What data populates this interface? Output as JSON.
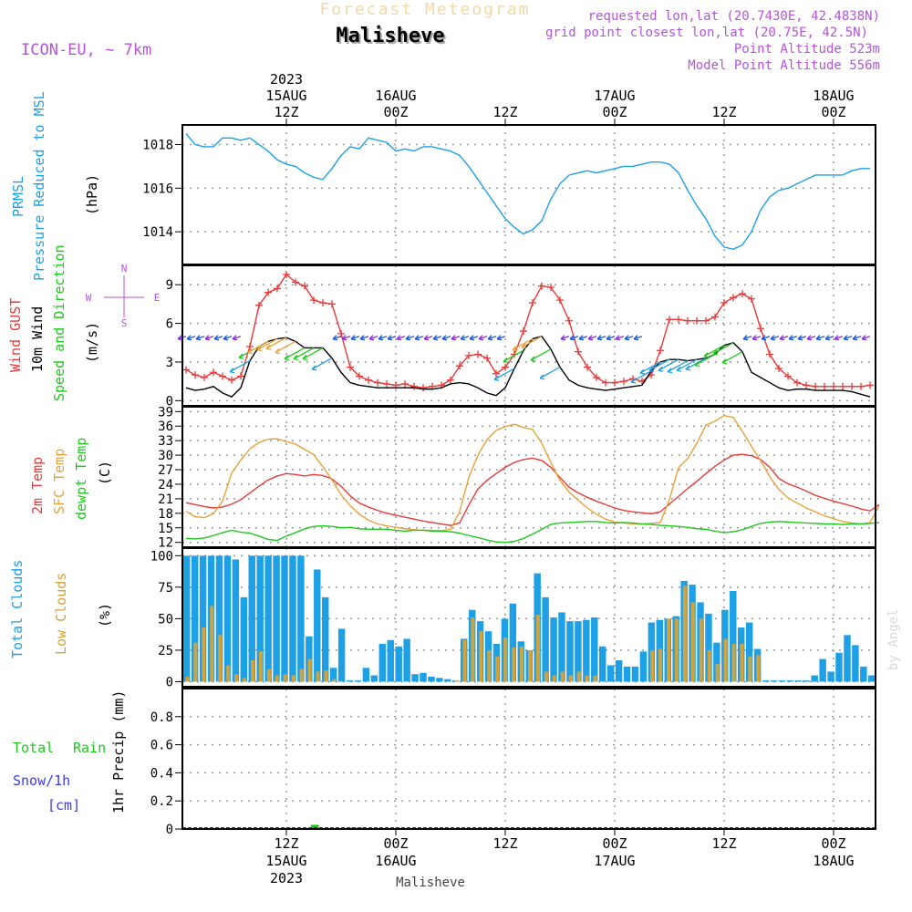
{
  "header": {
    "title_top": "Forecast Meteogram",
    "location": "Malisheve",
    "model": "ICON-EU, ~ 7km",
    "requested": "requested lon,lat (20.7430E, 42.4838N)",
    "grid_point": "grid point closest lon,lat (20.75E, 42.5N)",
    "point_altitude": "Point Altitude 523m",
    "model_altitude": "Model Point Altitude 556m",
    "bottom_location": "Malisheve",
    "credit": "by Angel"
  },
  "time_axis": {
    "start_hour": 0,
    "end_hour": 75,
    "top_labels": [
      {
        "hour": 11,
        "lines": [
          "2023",
          "15AUG",
          "12Z"
        ]
      },
      {
        "hour": 23,
        "lines": [
          "16AUG",
          "00Z"
        ]
      },
      {
        "hour": 35,
        "lines": [
          "12Z"
        ]
      },
      {
        "hour": 47,
        "lines": [
          "17AUG",
          "00Z"
        ]
      },
      {
        "hour": 59,
        "lines": [
          "12Z"
        ]
      },
      {
        "hour": 71,
        "lines": [
          "18AUG",
          "00Z"
        ]
      }
    ],
    "bottom_labels": [
      {
        "hour": 11,
        "lines": [
          "12Z",
          "15AUG",
          "2023"
        ]
      },
      {
        "hour": 23,
        "lines": [
          "00Z",
          "16AUG"
        ]
      },
      {
        "hour": 35,
        "lines": [
          "12Z"
        ]
      },
      {
        "hour": 47,
        "lines": [
          "00Z",
          "17AUG"
        ]
      },
      {
        "hour": 59,
        "lines": [
          "12Z"
        ]
      },
      {
        "hour": 71,
        "lines": [
          "00Z",
          "18AUG"
        ]
      }
    ]
  },
  "chart_data": [
    {
      "type": "line",
      "id": "pressure",
      "title": "PRMSL Pressure Reduced to MSL",
      "ylabel_lines": [
        "PRMSL",
        "Pressure Reduced to MSL"
      ],
      "unit": "(hPa)",
      "ylim": [
        1012.5,
        1018.9
      ],
      "yticks": [
        1014,
        1016,
        1018
      ],
      "series": [
        {
          "name": "PRMSL",
          "color": "#1ea0e6",
          "values": [
            1018.5,
            1018.0,
            1017.9,
            1017.9,
            1018.3,
            1018.3,
            1018.2,
            1018.3,
            1018.0,
            1017.7,
            1017.3,
            1017.1,
            1017.0,
            1016.7,
            1016.5,
            1016.4,
            1016.9,
            1017.5,
            1017.9,
            1017.8,
            1018.3,
            1018.2,
            1018.1,
            1017.7,
            1017.8,
            1017.7,
            1017.9,
            1017.9,
            1017.8,
            1017.7,
            1017.5,
            1017.0,
            1016.4,
            1015.8,
            1015.2,
            1014.6,
            1014.2,
            1013.9,
            1014.1,
            1014.5,
            1015.5,
            1016.2,
            1016.6,
            1016.7,
            1016.8,
            1016.7,
            1016.8,
            1016.9,
            1017.0,
            1017.0,
            1017.1,
            1017.2,
            1017.2,
            1017.1,
            1016.7,
            1015.9,
            1015.2,
            1014.6,
            1013.8,
            1013.3,
            1013.2,
            1013.4,
            1014.0,
            1015.0,
            1015.6,
            1015.9,
            1016.0,
            1016.2,
            1016.4,
            1016.6,
            1016.6,
            1016.6,
            1016.6,
            1016.8,
            1016.9,
            1016.9
          ]
        }
      ]
    },
    {
      "type": "line",
      "id": "wind",
      "title": "Wind GUST / 10m Wind Speed and Direction",
      "ylabel_lines": [
        {
          "text": "Wind GUST",
          "color": "#e83a3a"
        },
        {
          "text": "10m Wind",
          "color": "#000000"
        },
        {
          "text": "Speed and Direction",
          "color": "#1ec81e"
        }
      ],
      "unit": "(m/s)",
      "compass": {
        "n": "N",
        "s": "S",
        "w": "W",
        "e": "E"
      },
      "ylim": [
        -0.4,
        10.5
      ],
      "yticks": [
        0,
        3,
        6,
        9
      ],
      "series": [
        {
          "name": "Wind GUST",
          "color": "#e83a3a",
          "marker": "+",
          "values": [
            2.4,
            2.0,
            1.8,
            2.2,
            1.9,
            1.6,
            1.9,
            4.2,
            7.4,
            8.4,
            8.7,
            9.8,
            9.2,
            8.9,
            7.8,
            7.6,
            7.5,
            5.2,
            2.6,
            1.9,
            1.6,
            1.4,
            1.3,
            1.2,
            1.3,
            1.1,
            1.0,
            1.1,
            1.2,
            1.6,
            2.7,
            3.5,
            3.6,
            3.3,
            2.1,
            2.6,
            3.6,
            5.4,
            7.6,
            8.9,
            8.8,
            7.8,
            6.2,
            3.8,
            2.6,
            1.8,
            1.4,
            1.4,
            1.5,
            1.7,
            1.5,
            2.0,
            3.9,
            6.3,
            6.3,
            6.2,
            6.2,
            6.2,
            6.5,
            7.6,
            8.0,
            8.3,
            7.9,
            5.6,
            3.6,
            2.5,
            1.9,
            1.4,
            1.2,
            1.1,
            1.1,
            1.1,
            1.1,
            1.1,
            1.1,
            1.2
          ]
        },
        {
          "name": "10m Wind",
          "color": "#000000",
          "values": [
            1.0,
            0.8,
            0.9,
            1.1,
            0.6,
            0.3,
            1.0,
            3.1,
            4.2,
            4.6,
            4.8,
            4.9,
            4.6,
            4.1,
            4.1,
            4.1,
            3.3,
            2.2,
            1.4,
            1.2,
            1.1,
            1.0,
            1.0,
            1.0,
            1.0,
            1.0,
            0.9,
            0.9,
            1.0,
            1.3,
            1.4,
            1.3,
            1.0,
            0.6,
            0.4,
            1.0,
            2.5,
            3.9,
            4.8,
            5.0,
            4.0,
            2.6,
            1.6,
            1.2,
            1.0,
            0.9,
            0.8,
            0.9,
            1.0,
            1.1,
            1.2,
            2.3,
            3.0,
            3.2,
            3.2,
            3.1,
            3.2,
            3.3,
            3.6,
            4.3,
            4.5,
            3.8,
            2.2,
            1.8,
            1.4,
            1.0,
            0.8,
            0.9,
            0.9,
            0.8,
            0.8,
            0.8,
            0.8,
            0.7,
            0.5,
            0.3
          ]
        }
      ],
      "direction_arrows": {
        "description": "wind barbs along 10m wind speed, colored by speed",
        "colors": [
          "#1a55e6",
          "#8a2be2",
          "#1ea0e6",
          "#1ec81e",
          "#e8a23a",
          "#e83a3a"
        ]
      }
    },
    {
      "type": "line",
      "id": "temperature",
      "title": "2m Temp / SFC Temp / dewpt Temp",
      "ylabel_lines": [
        {
          "text": "2m Temp",
          "color": "#e83a3a"
        },
        {
          "text": "SFC Temp",
          "color": "#e8a23a"
        },
        {
          "text": "dewpt Temp",
          "color": "#1ec81e"
        }
      ],
      "unit": "(C)",
      "ylim": [
        11,
        40
      ],
      "yticks": [
        12,
        15,
        18,
        21,
        24,
        27,
        30,
        33,
        36,
        39
      ],
      "series": [
        {
          "name": "2m Temp",
          "color": "#e83a3a",
          "values": [
            20.2,
            19.8,
            19.4,
            19.1,
            19.3,
            19.9,
            20.8,
            22.2,
            23.6,
            24.9,
            25.7,
            26.2,
            26.0,
            25.7,
            26.0,
            25.8,
            25.1,
            23.6,
            21.6,
            20.1,
            19.3,
            18.6,
            18.0,
            17.6,
            17.2,
            16.8,
            16.4,
            16.1,
            15.8,
            15.5,
            16.0,
            19.7,
            23.0,
            24.8,
            26.2,
            27.5,
            28.5,
            29.1,
            29.4,
            28.9,
            27.5,
            25.4,
            23.4,
            22.2,
            21.3,
            20.5,
            19.8,
            19.1,
            18.6,
            18.3,
            18.1,
            17.9,
            18.3,
            19.9,
            21.5,
            23.1,
            24.6,
            26.2,
            27.7,
            29.0,
            30.0,
            30.2,
            29.9,
            29.1,
            27.5,
            25.2,
            24.1,
            23.4,
            22.6,
            21.7,
            21.1,
            20.5,
            20.0,
            19.5,
            18.9,
            18.5,
            19.8
          ]
        },
        {
          "name": "SFC Temp",
          "color": "#e8a23a",
          "values": [
            18.4,
            17.3,
            17.1,
            17.9,
            20.5,
            26.3,
            29.0,
            31.3,
            32.6,
            33.3,
            33.4,
            32.8,
            32.3,
            31.2,
            30.1,
            27.6,
            24.9,
            21.8,
            19.6,
            17.8,
            16.6,
            15.8,
            15.4,
            15.1,
            14.8,
            14.6,
            14.5,
            14.5,
            14.4,
            14.7,
            18.4,
            25.4,
            30.0,
            33.2,
            35.1,
            35.9,
            36.4,
            35.7,
            35.3,
            32.5,
            28.4,
            24.8,
            22.4,
            20.7,
            19.1,
            17.8,
            16.8,
            16.2,
            16.0,
            15.8,
            15.8,
            15.9,
            16.1,
            20.8,
            27.4,
            29.3,
            32.4,
            36.2,
            37.0,
            38.2,
            37.8,
            34.9,
            31.8,
            28.9,
            25.6,
            22.9,
            21.2,
            20.1,
            19.1,
            18.3,
            17.5,
            16.9,
            16.3,
            16.0,
            15.8,
            16.1,
            19.6
          ]
        },
        {
          "name": "dewpt Temp",
          "color": "#1ec81e",
          "values": [
            12.8,
            12.7,
            12.9,
            13.4,
            14.0,
            14.5,
            14.1,
            13.9,
            13.3,
            12.6,
            12.4,
            13.3,
            14.0,
            14.8,
            15.3,
            15.4,
            15.3,
            15.0,
            15.1,
            14.8,
            14.7,
            14.7,
            14.7,
            14.5,
            14.3,
            14.5,
            14.5,
            14.3,
            14.3,
            14.2,
            13.9,
            13.4,
            13.0,
            12.5,
            12.1,
            12.0,
            12.2,
            12.8,
            13.7,
            14.7,
            15.7,
            16.0,
            16.1,
            16.2,
            16.3,
            16.3,
            16.1,
            16.0,
            16.1,
            16.0,
            15.8,
            15.7,
            15.5,
            15.4,
            15.3,
            15.1,
            14.8,
            14.7,
            14.3,
            14.0,
            14.2,
            14.6,
            15.3,
            15.9,
            16.2,
            16.3,
            16.2,
            16.1,
            16.0,
            15.9,
            15.8,
            15.8,
            15.7,
            15.8,
            15.8,
            15.9,
            16.1
          ]
        }
      ]
    },
    {
      "type": "bar",
      "id": "clouds",
      "title": "Total Clouds / Low Clouds",
      "ylabel_lines": [
        {
          "text": "Total Clouds",
          "color": "#1ea0e6"
        },
        {
          "text": "Low Clouds",
          "color": "#d4a23a"
        }
      ],
      "unit": "(%)",
      "ylim": [
        -4,
        106
      ],
      "yticks": [
        0,
        25,
        50,
        75,
        100
      ],
      "series": [
        {
          "name": "Total Clouds",
          "color": "#1ea0e6",
          "values": [
            100,
            100,
            100,
            100,
            100,
            100,
            97,
            67,
            100,
            100,
            100,
            100,
            100,
            100,
            100,
            36,
            89,
            67,
            11,
            42,
            1,
            1,
            11,
            5,
            30,
            33,
            28,
            34,
            6,
            7,
            4,
            3,
            2,
            1,
            34,
            57,
            48,
            40,
            30,
            50,
            62,
            32,
            25,
            86,
            67,
            51,
            55,
            48,
            48,
            49,
            51,
            28,
            13,
            17,
            12,
            12,
            24,
            47,
            49,
            50,
            52,
            80,
            77,
            63,
            54,
            31,
            57,
            72,
            43,
            47,
            26,
            1,
            1,
            1,
            1,
            1,
            1,
            5,
            18,
            8,
            23,
            37,
            29,
            12,
            5
          ]
        },
        {
          "name": "Low Clouds",
          "color": "#d4a23a",
          "values": [
            4,
            31,
            43,
            60,
            37,
            13,
            6,
            3,
            17,
            24,
            10,
            5,
            6,
            5,
            10,
            18,
            8,
            9,
            2,
            0,
            0,
            0,
            0,
            0,
            0,
            0,
            0,
            0,
            0,
            0,
            0,
            0,
            0,
            1,
            33,
            51,
            40,
            25,
            20,
            35,
            27,
            28,
            25,
            53,
            8,
            5,
            8,
            5,
            8,
            5,
            5,
            0,
            0,
            0,
            0,
            0,
            0,
            25,
            26,
            50,
            50,
            76,
            63,
            50,
            25,
            14,
            34,
            30,
            30,
            20,
            21,
            0,
            0,
            0,
            0,
            0,
            0,
            0,
            0,
            0,
            0,
            0,
            0,
            0,
            0
          ]
        }
      ]
    },
    {
      "type": "bar",
      "id": "precip",
      "title": "Total Rain / Snow/1h",
      "ylabel_lines": [
        {
          "text": "Total",
          "color": "#1ec81e"
        },
        {
          "text": "Rain",
          "color": "#1ec81e"
        },
        {
          "text": "Snow/1h",
          "color": "#3a3ae8"
        },
        {
          "text": "[cm]",
          "color": "#3a3ae8"
        }
      ],
      "unit": "1hr Precip (mm)",
      "ylim": [
        0,
        1.0
      ],
      "yticks": [
        0,
        0.2,
        0.4,
        0.6,
        0.8
      ],
      "series": [
        {
          "name": "Rain",
          "color": "#1ec81e",
          "values": [
            0,
            0,
            0,
            0,
            0,
            0,
            0,
            0,
            0,
            0,
            0,
            0,
            0,
            0,
            0.03,
            0,
            0,
            0,
            0.01,
            0.01,
            0,
            0,
            0,
            0,
            0,
            0,
            0,
            0,
            0,
            0,
            0,
            0,
            0,
            0,
            0,
            0,
            0,
            0,
            0,
            0,
            0,
            0,
            0,
            0,
            0,
            0,
            0,
            0,
            0,
            0,
            0,
            0,
            0,
            0,
            0,
            0,
            0,
            0,
            0,
            0,
            0,
            0,
            0,
            0,
            0,
            0,
            0,
            0,
            0,
            0,
            0,
            0,
            0,
            0,
            0,
            0
          ]
        },
        {
          "name": "Snow",
          "color": "#3a3ae8",
          "values": [
            0,
            0,
            0,
            0,
            0,
            0,
            0,
            0,
            0,
            0,
            0,
            0,
            0,
            0,
            0,
            0,
            0,
            0,
            0,
            0,
            0,
            0,
            0,
            0,
            0,
            0,
            0,
            0,
            0,
            0,
            0,
            0,
            0,
            0,
            0,
            0,
            0,
            0,
            0,
            0,
            0,
            0,
            0,
            0,
            0,
            0,
            0,
            0,
            0,
            0,
            0,
            0,
            0,
            0,
            0,
            0,
            0,
            0,
            0,
            0,
            0,
            0,
            0,
            0,
            0,
            0,
            0,
            0,
            0,
            0,
            0,
            0,
            0,
            0,
            0,
            0
          ]
        }
      ]
    }
  ]
}
